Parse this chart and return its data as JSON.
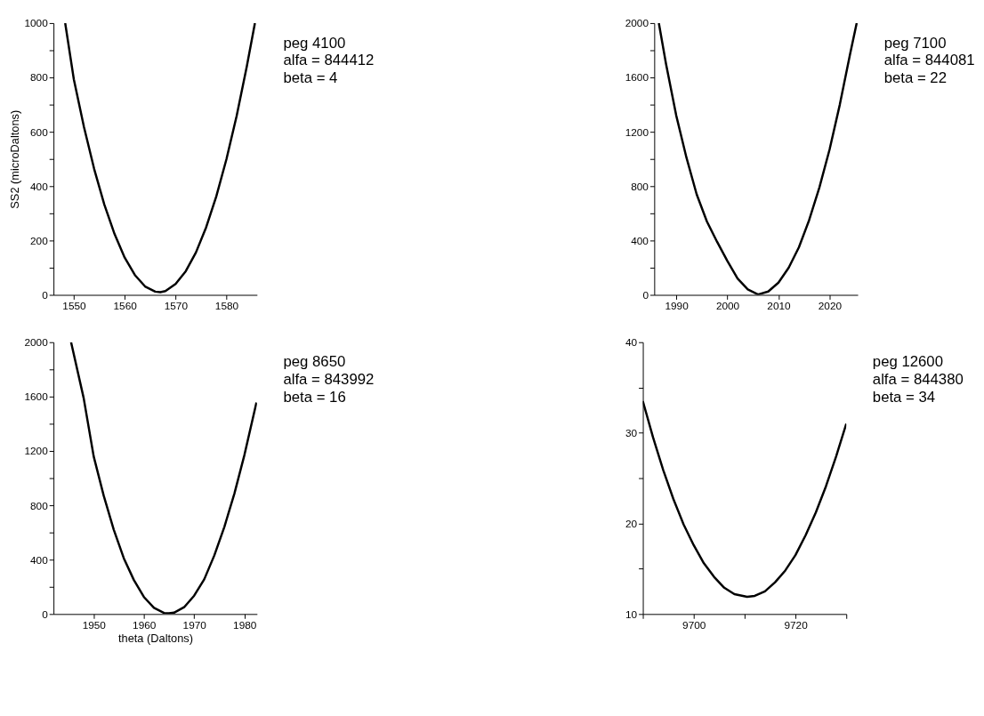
{
  "chart_data": [
    {
      "type": "line",
      "ylabel": "SS2 (microDaltons)",
      "annotations": [
        "peg 4100",
        "alfa =  844412",
        "beta = 4"
      ],
      "x": [
        1548.3,
        1550,
        1552,
        1554,
        1556,
        1558,
        1560,
        1562,
        1564,
        1566,
        1567,
        1568,
        1570,
        1572,
        1574,
        1576,
        1578,
        1580,
        1582,
        1584,
        1585.6
      ],
      "values": [
        1000,
        793,
        617,
        463,
        332,
        224,
        137,
        73,
        31,
        12,
        10,
        14,
        40,
        87,
        156,
        248,
        362,
        499,
        658,
        840,
        1000
      ],
      "color": "#000000",
      "xlim": [
        1546,
        1586
      ],
      "ylim": [
        0,
        1000
      ],
      "xticks": [
        1550,
        1560,
        1570,
        1580
      ],
      "yticks": [
        0,
        {
          "value": 100,
          "label": null
        },
        200,
        {
          "value": 300,
          "label": null
        },
        400,
        {
          "value": 500,
          "label": null
        },
        600,
        {
          "value": 700,
          "label": null
        },
        800,
        {
          "value": 900,
          "label": null
        },
        1000
      ],
      "grid": false
    },
    {
      "type": "line",
      "annotations": [
        "peg 7100",
        "alfa =  844081",
        "beta = 22"
      ],
      "x": [
        1986.6,
        1988,
        1990,
        1992,
        1994,
        1996,
        1998,
        2000,
        2002,
        2004,
        2006,
        2008,
        2010,
        2012,
        2014,
        2016,
        2018,
        2020,
        2022,
        2024,
        2025.3
      ],
      "values": [
        2000,
        1700,
        1320,
        1010,
        740,
        540,
        390,
        250,
        120,
        40,
        3,
        25,
        90,
        200,
        350,
        550,
        790,
        1070,
        1400,
        1770,
        2000
      ],
      "color": "#000000",
      "xlim": [
        1985.7,
        2025.5
      ],
      "ylim": [
        0,
        2000
      ],
      "xticks": [
        1990,
        2000,
        2010,
        2020
      ],
      "yticks": [
        0,
        {
          "value": 200,
          "label": null
        },
        400,
        {
          "value": 600,
          "label": null
        },
        800,
        {
          "value": 1000,
          "label": null
        },
        1200,
        {
          "value": 1400,
          "label": null
        },
        1600,
        {
          "value": 1800,
          "label": null
        },
        2000
      ],
      "grid": false
    },
    {
      "type": "line",
      "xlabel": "theta (Daltons)",
      "annotations": [
        "peg 8650",
        "alfa =  843992",
        "beta = 16"
      ],
      "x": [
        1945.5,
        1948,
        1950,
        1952,
        1954,
        1956,
        1958,
        1960,
        1962,
        1964,
        1965,
        1966,
        1968,
        1970,
        1972,
        1974,
        1976,
        1978,
        1980,
        1982.4
      ],
      "values": [
        2000,
        1590,
        1160,
        870,
        620,
        410,
        250,
        125,
        45,
        8,
        5,
        10,
        50,
        135,
        255,
        430,
        640,
        885,
        1170,
        1556
      ],
      "color": "#000000",
      "xlim": [
        1942,
        1982.5
      ],
      "ylim": [
        0,
        2000
      ],
      "xticks": [
        1950,
        1960,
        1970,
        1980
      ],
      "yticks": [
        0,
        {
          "value": 200,
          "label": null
        },
        400,
        {
          "value": 600,
          "label": null
        },
        800,
        {
          "value": 1000,
          "label": null
        },
        1200,
        {
          "value": 1400,
          "label": null
        },
        1600,
        {
          "value": 1800,
          "label": null
        },
        2000
      ],
      "grid": false
    },
    {
      "type": "line",
      "annotations": [
        "peg 12600",
        "alfa =  844380",
        "beta = 34"
      ],
      "x": [
        9690,
        9692,
        9694,
        9696,
        9698,
        9700,
        9702,
        9704,
        9706,
        9708,
        9710.5,
        9712,
        9714,
        9716,
        9718,
        9720,
        9722,
        9724,
        9726,
        9728,
        9730
      ],
      "values": [
        33.5,
        29.5,
        25.9,
        22.7,
        19.9,
        17.6,
        15.6,
        14.1,
        12.9,
        12.2,
        11.9,
        12.0,
        12.5,
        13.5,
        14.8,
        16.5,
        18.7,
        21.2,
        24.1,
        27.4,
        31.0
      ],
      "color": "#000000",
      "xlim": [
        9690,
        9730
      ],
      "ylim": [
        10,
        40
      ],
      "xticks": [
        {
          "value": 9690,
          "label": null
        },
        9700,
        {
          "value": 9710,
          "label": null
        },
        9720,
        {
          "value": 9730,
          "label": null
        }
      ],
      "yticks": [
        10,
        {
          "value": 15,
          "label": null
        },
        20,
        {
          "value": 25,
          "label": null
        },
        30,
        {
          "value": 35,
          "label": null
        },
        40
      ],
      "grid": false
    }
  ]
}
